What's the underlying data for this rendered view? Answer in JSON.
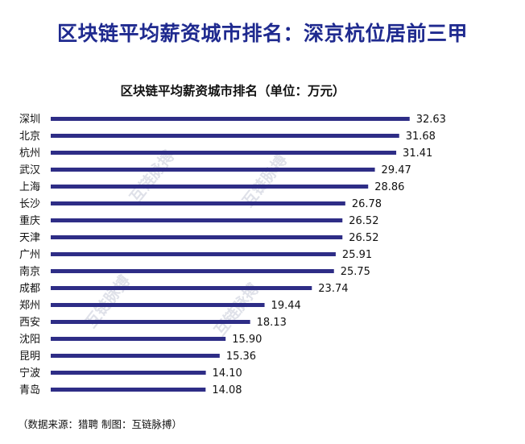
{
  "headline": "区块链平均薪资城市排名：深京杭位居前三甲",
  "source": "（数据来源：猎聘    制图：互链脉搏）",
  "watermark_text": "互链脉搏",
  "colors": {
    "bar": "#2e2d86",
    "headline": "#1f2a8f",
    "text": "#111111"
  },
  "chart_data": {
    "type": "bar",
    "orientation": "horizontal",
    "title": "区块链平均薪资城市排名（单位：万元）",
    "categories": [
      "深圳",
      "北京",
      "杭州",
      "武汉",
      "上海",
      "长沙",
      "重庆",
      "天津",
      "广州",
      "南京",
      "成都",
      "郑州",
      "西安",
      "沈阳",
      "昆明",
      "宁波",
      "青岛"
    ],
    "values": [
      32.63,
      31.68,
      31.41,
      29.47,
      28.86,
      26.78,
      26.52,
      26.52,
      25.91,
      25.75,
      23.74,
      19.44,
      18.13,
      15.9,
      15.36,
      14.1,
      14.08
    ],
    "value_labels": [
      "32.63",
      "31.68",
      "31.41",
      "29.47",
      "28.86",
      "26.78",
      "26.52",
      "26.52",
      "25.91",
      "25.75",
      "23.74",
      "19.44",
      "18.13",
      "15.90",
      "15.36",
      "14.10",
      "14.08"
    ],
    "xlim": [
      0,
      35
    ],
    "grid": false,
    "legend": "none"
  }
}
